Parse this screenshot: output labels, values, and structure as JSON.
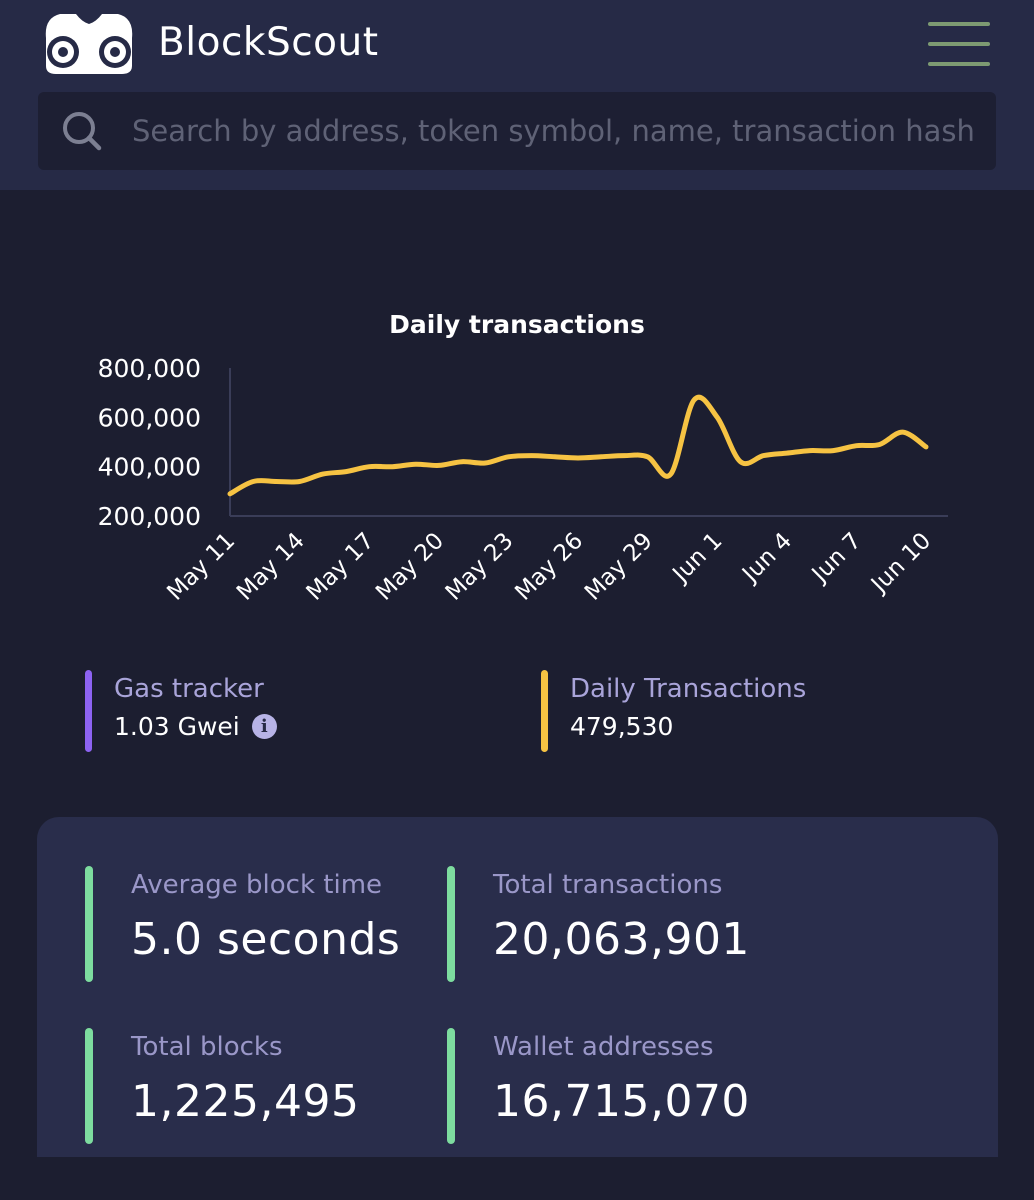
{
  "header": {
    "brand": "BlockScout",
    "search_placeholder": "Search by address, token symbol, name, transaction hash"
  },
  "colors": {
    "header_bg": "#262a46",
    "page_bg": "#1c1e30",
    "line": "#f6c343",
    "gas_accent": "#8d63f2",
    "stat_accent": "#7ddc9f",
    "menu": "#7d9a72"
  },
  "chart_data": {
    "type": "line",
    "title": "Daily transactions",
    "x_ticks": [
      "May 11",
      "May 14",
      "May 17",
      "May 20",
      "May 23",
      "May 26",
      "May 29",
      "Jun 1",
      "Jun 4",
      "Jun 7",
      "Jun 10"
    ],
    "y_ticks": [
      "800,000",
      "600,000",
      "400,000",
      "200,000"
    ],
    "ylim": [
      200000,
      800000
    ],
    "grid": false,
    "series": [
      {
        "x": [
          "May 11",
          "May 12",
          "May 13",
          "May 14",
          "May 15",
          "May 16",
          "May 17",
          "May 18",
          "May 19",
          "May 20",
          "May 21",
          "May 22",
          "May 23",
          "May 24",
          "May 25",
          "May 26",
          "May 27",
          "May 28",
          "May 29",
          "May 30",
          "May 31",
          "Jun 1",
          "Jun 2",
          "Jun 3",
          "Jun 4",
          "Jun 5",
          "Jun 6",
          "Jun 7",
          "Jun 8",
          "Jun 9",
          "Jun 10"
        ],
        "values": [
          290000,
          340000,
          340000,
          340000,
          370000,
          380000,
          400000,
          400000,
          410000,
          405000,
          420000,
          415000,
          440000,
          445000,
          440000,
          435000,
          440000,
          445000,
          440000,
          370000,
          670000,
          600000,
          420000,
          445000,
          455000,
          465000,
          465000,
          485000,
          490000,
          540000,
          480000
        ]
      }
    ]
  },
  "gas_tracker": {
    "label": "Gas tracker",
    "value": "1.03 Gwei",
    "info_icon": "info-icon"
  },
  "daily_transactions": {
    "label": "Daily Transactions",
    "value": "479,530"
  },
  "stats": [
    {
      "label": "Average block time",
      "value": "5.0 seconds"
    },
    {
      "label": "Total transactions",
      "value": "20,063,901"
    },
    {
      "label": "Total blocks",
      "value": "1,225,495"
    },
    {
      "label": "Wallet addresses",
      "value": "16,715,070"
    }
  ]
}
